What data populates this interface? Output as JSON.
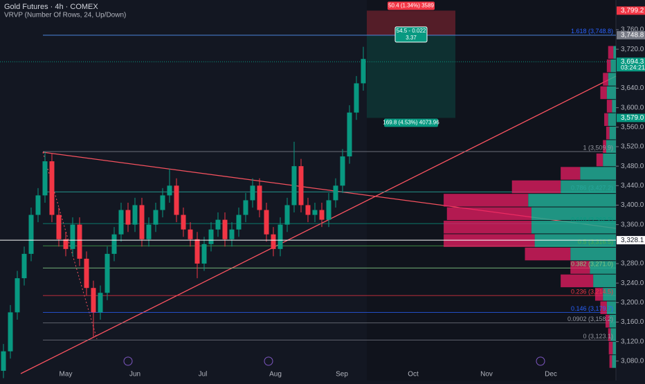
{
  "chart_data": {
    "type": "candlestick",
    "title": "Gold Futures · 4h · COMEX",
    "subtitle": "VRVP (Number Of Rows, 24, Up/Down)",
    "up_color": "#089981",
    "down_color": "#f23645",
    "open": [
      3060,
      3100,
      3180,
      3250,
      3300,
      3380,
      3420,
      3490,
      3380,
      3330,
      3310,
      3360,
      3290,
      3230,
      3180,
      3220,
      3300,
      3340,
      3390,
      3360,
      3400,
      3330,
      3360,
      3390,
      3420,
      3440,
      3380,
      3350,
      3330,
      3280,
      3320,
      3350,
      3370,
      3330,
      3350,
      3380,
      3410,
      3440,
      3390,
      3340,
      3310,
      3360,
      3400,
      3480,
      3400,
      3380,
      3390,
      3370,
      3410,
      3440,
      3500,
      3590,
      3650
    ],
    "high": [
      3115,
      3195,
      3265,
      3315,
      3395,
      3435,
      3510,
      3505,
      3395,
      3345,
      3375,
      3375,
      3305,
      3245,
      3235,
      3315,
      3355,
      3405,
      3405,
      3415,
      3415,
      3375,
      3405,
      3435,
      3475,
      3455,
      3395,
      3365,
      3345,
      3335,
      3365,
      3385,
      3385,
      3365,
      3395,
      3425,
      3455,
      3455,
      3405,
      3355,
      3375,
      3415,
      3530,
      3495,
      3415,
      3405,
      3405,
      3425,
      3455,
      3515,
      3605,
      3665,
      3725
    ],
    "low": [
      3045,
      3085,
      3165,
      3235,
      3285,
      3365,
      3405,
      3365,
      3315,
      3295,
      3295,
      3275,
      3215,
      3130,
      3165,
      3205,
      3285,
      3325,
      3345,
      3345,
      3315,
      3315,
      3345,
      3375,
      3405,
      3365,
      3335,
      3315,
      3250,
      3265,
      3305,
      3335,
      3315,
      3315,
      3335,
      3365,
      3395,
      3375,
      3325,
      3295,
      3295,
      3345,
      3385,
      3385,
      3365,
      3365,
      3355,
      3355,
      3395,
      3425,
      3485,
      3575,
      3635
    ],
    "close": [
      3100,
      3180,
      3250,
      3300,
      3380,
      3420,
      3490,
      3380,
      3330,
      3310,
      3360,
      3290,
      3230,
      3180,
      3220,
      3300,
      3340,
      3390,
      3360,
      3400,
      3330,
      3360,
      3390,
      3420,
      3440,
      3380,
      3350,
      3330,
      3280,
      3320,
      3350,
      3370,
      3330,
      3350,
      3380,
      3410,
      3440,
      3390,
      3340,
      3310,
      3360,
      3400,
      3480,
      3400,
      3380,
      3390,
      3370,
      3410,
      3440,
      3500,
      3590,
      3650,
      3700
    ],
    "xlim": [
      0,
      89
    ],
    "xticks": [
      {
        "value": 9.5,
        "label": "May"
      },
      {
        "value": 19.5,
        "label": "Jun"
      },
      {
        "value": 29.3,
        "label": "Jul"
      },
      {
        "value": 39.8,
        "label": "Aug"
      },
      {
        "value": 49.4,
        "label": "Sep"
      },
      {
        "value": 59.7,
        "label": "Oct"
      },
      {
        "value": 70.3,
        "label": "Nov"
      },
      {
        "value": 79.6,
        "label": "Dec"
      }
    ],
    "ylim": [
      3040,
      3821
    ],
    "yticks": [
      {
        "value": 3760,
        "label": "3,760.0"
      },
      {
        "value": 3720,
        "label": "3,720.0"
      },
      {
        "value": 3640,
        "label": "3,640.0"
      },
      {
        "value": 3600,
        "label": "3,600.0"
      },
      {
        "value": 3560,
        "label": "3,560.0"
      },
      {
        "value": 3520,
        "label": "3,520.0"
      },
      {
        "value": 3480,
        "label": "3,480.0"
      },
      {
        "value": 3440,
        "label": "3,440.0"
      },
      {
        "value": 3400,
        "label": "3,400.0"
      },
      {
        "value": 3360,
        "label": "3,360.0"
      },
      {
        "value": 3280,
        "label": "3,280.0"
      },
      {
        "value": 3240,
        "label": "3,240.0"
      },
      {
        "value": 3200,
        "label": "3,200.0"
      },
      {
        "value": 3160,
        "label": "3,160.0"
      },
      {
        "value": 3120,
        "label": "3,120.0"
      },
      {
        "value": 3080,
        "label": "3,080.0"
      }
    ],
    "fib_levels": [
      {
        "value": 3748.8,
        "label": "1.618 (3,748.8)",
        "color": "#2962ff"
      },
      {
        "value": 3509.9,
        "label": "1 (3,509.9)",
        "color": "#787b86"
      },
      {
        "value": 3427.2,
        "label": "0.786 (3,427.2)",
        "color": "#26a69a"
      },
      {
        "value": 3362.2,
        "label": "0.618 (3,362.2)",
        "color": "#089981"
      },
      {
        "value": 3316.5,
        "label": "0.5 (3,316.5)",
        "color": "#4caf50"
      },
      {
        "value": 3271.0,
        "label": "0.382 (3,271.0)",
        "color": "#81c784"
      },
      {
        "value": 3214.5,
        "label": "0.236 (3,214.5)",
        "color": "#f23645"
      },
      {
        "value": 3179.7,
        "label": "0.146 (3,179.7)",
        "color": "#2962ff"
      },
      {
        "value": 3158.2,
        "label": "0.0902 (3,158.2)",
        "color": "#787b86"
      },
      {
        "value": 3123.1,
        "label": "0 (3,123.1)",
        "color": "#787b86"
      }
    ],
    "price_tags": [
      {
        "value": 3799.2,
        "label": "3,799.2",
        "color": "#f23645"
      },
      {
        "value": 3748.8,
        "label": "3,748.8",
        "color": "#787b86"
      },
      {
        "value": 3694.3,
        "label": "3,694.3",
        "color": "#089981"
      },
      {
        "value": 3579.0,
        "label": "3,579.0",
        "color": "#089981"
      },
      {
        "value": 3328.1,
        "label": "3,328.1",
        "color": "#ffffff"
      }
    ],
    "countdown": "03:24:21",
    "position": {
      "stop": 3799.2,
      "entry": 3748.8,
      "target": 3579.0,
      "stop_label": "50.4 (1.34%) 3589",
      "entry_label_1": "54.5 - 0.022",
      "entry_label_2": "3.37",
      "target_label": "169.8 (4.53%) 4073.96"
    },
    "profile": {
      "low": 3066,
      "high": 3728,
      "xmax": 280,
      "up": [
        6,
        5,
        8,
        10,
        14,
        20,
        35,
        40,
        70,
        125,
        130,
        130,
        135,
        85,
        55,
        20,
        15,
        10,
        12,
        6,
        14,
        12,
        8,
        4
      ],
      "down": [
        4,
        6,
        4,
        6,
        10,
        12,
        50,
        30,
        70,
        140,
        135,
        130,
        130,
        75,
        30,
        10,
        5,
        5,
        6,
        8,
        10,
        8,
        6,
        8
      ]
    }
  }
}
